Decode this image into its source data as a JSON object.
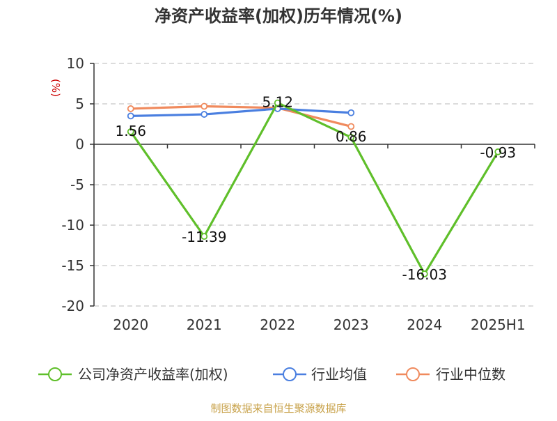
{
  "colors": {
    "company": "#5fbf2a",
    "industry_avg": "#4a7fe0",
    "industry_median": "#f08a5d",
    "grid": "#c8c8c8",
    "axis": "#333333",
    "unit": "#cc0000",
    "source": "#c8a24a"
  },
  "chart_data": {
    "type": "line",
    "title": "净资产收益率(加权)历年情况(%)",
    "ylabel": "(%)",
    "xlabel": "",
    "categories": [
      "2020",
      "2021",
      "2022",
      "2023",
      "2024",
      "2025H1"
    ],
    "ylim": [
      -20,
      10
    ],
    "yticks": [
      10,
      5,
      0,
      -5,
      -10,
      -15,
      -20
    ],
    "ytick_labels": [
      "10",
      "5",
      "0",
      "-5",
      "-10",
      "-15",
      "-20"
    ],
    "grid": true,
    "legend_position": "bottom",
    "series": [
      {
        "name": "公司净资产收益率(加权)",
        "color_key": "company",
        "values": [
          1.56,
          -11.39,
          5.12,
          0.86,
          -16.03,
          -0.93
        ],
        "labels": [
          "1.56",
          "-11.39",
          "5.12",
          "0.86",
          "-16.03",
          "-0.93"
        ]
      },
      {
        "name": "行业均值",
        "color_key": "industry_avg",
        "values": [
          3.5,
          3.7,
          4.4,
          3.9,
          null,
          null
        ]
      },
      {
        "name": "行业中位数",
        "color_key": "industry_median",
        "values": [
          4.4,
          4.7,
          4.5,
          2.2,
          null,
          null
        ]
      }
    ]
  },
  "source_text": "制图数据来自恒生聚源数据库"
}
